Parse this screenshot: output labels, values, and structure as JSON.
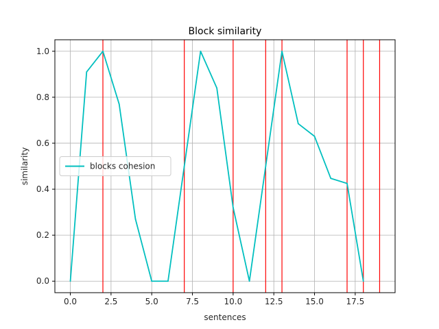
{
  "chart_data": {
    "type": "line",
    "title": "Block similarity",
    "xlabel": "sentences",
    "ylabel": "similarity",
    "xlim": [
      -0.95,
      19.95
    ],
    "ylim": [
      -0.05,
      1.05
    ],
    "xticks": [
      0.0,
      2.5,
      5.0,
      7.5,
      10.0,
      12.5,
      15.0,
      17.5
    ],
    "xtick_labels": [
      "0.0",
      "2.5",
      "5.0",
      "7.5",
      "10.0",
      "12.5",
      "15.0",
      "17.5"
    ],
    "yticks": [
      0.0,
      0.2,
      0.4,
      0.6,
      0.8,
      1.0
    ],
    "ytick_labels": [
      "0.0",
      "0.2",
      "0.4",
      "0.6",
      "0.8",
      "1.0"
    ],
    "grid": true,
    "legend_position": "center-left",
    "series": [
      {
        "name": "blocks cohesion",
        "color": "#00bfbf",
        "x": [
          0,
          1,
          2,
          3,
          4,
          5,
          6,
          7,
          8,
          9,
          10,
          11,
          12,
          13,
          14,
          15,
          16,
          17,
          18
        ],
        "y": [
          0.0,
          0.91,
          1.0,
          0.77,
          0.27,
          0.0,
          0.0,
          0.5,
          1.0,
          0.84,
          0.32,
          0.0,
          0.5,
          1.0,
          0.685,
          0.63,
          0.447,
          0.425,
          0.0
        ]
      }
    ],
    "vlines": {
      "color": "#ff0000",
      "x": [
        2,
        7,
        10,
        12,
        13,
        17,
        18,
        19
      ]
    }
  }
}
